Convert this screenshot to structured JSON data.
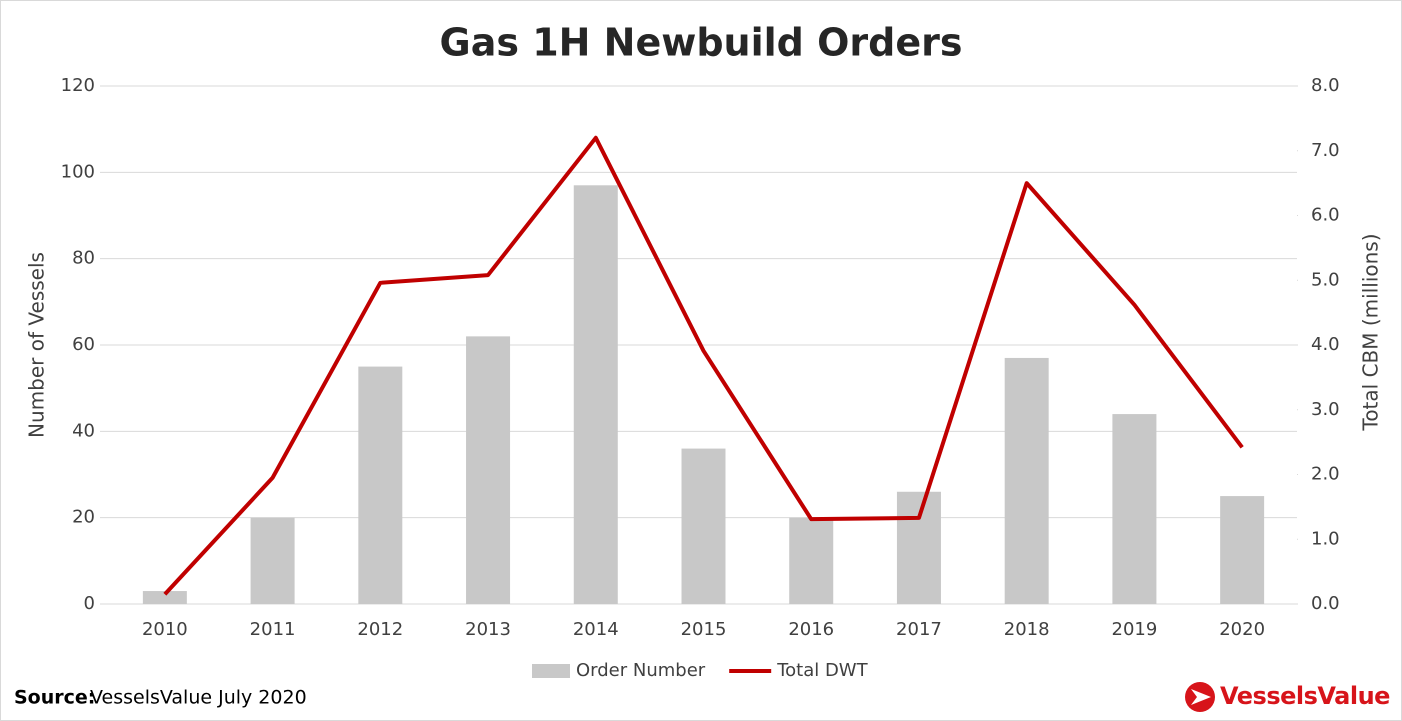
{
  "chart_data": {
    "type": "bar",
    "title": "Gas 1H Newbuild Orders",
    "y_label": "Number of Vessels",
    "y2_label": "Total CBM (millions)",
    "categories": [
      "2010",
      "2011",
      "2012",
      "2013",
      "2014",
      "2015",
      "2016",
      "2017",
      "2018",
      "2019",
      "2020"
    ],
    "series": [
      {
        "name": "Order Number",
        "type": "bar",
        "color": "#c8c8c8",
        "values": [
          3,
          20,
          55,
          62,
          97,
          36,
          20,
          26,
          57,
          44,
          25
        ]
      },
      {
        "name": "Total DWT",
        "type": "line",
        "axis": "y2",
        "color": "#c00000",
        "values": [
          0.15,
          1.95,
          4.96,
          5.08,
          7.2,
          3.91,
          1.31,
          1.33,
          6.5,
          4.62,
          2.42
        ]
      }
    ],
    "ylim": [
      0,
      120
    ],
    "yticks": [
      0,
      20,
      40,
      60,
      80,
      100,
      120
    ],
    "y2lim": [
      0,
      8
    ],
    "y2ticks": [
      {
        "value": 0,
        "label": "0.0"
      },
      {
        "value": 1,
        "label": "1.0"
      },
      {
        "value": 2,
        "label": "2.0"
      },
      {
        "value": 3,
        "label": "3.0"
      },
      {
        "value": 4,
        "label": "4.0"
      },
      {
        "value": 5,
        "label": "5.0"
      },
      {
        "value": 6,
        "label": "6.0"
      },
      {
        "value": 7,
        "label": "7.0"
      },
      {
        "value": 8,
        "label": "8.0"
      }
    ],
    "grid": true,
    "legend": "bottom",
    "source_label": "Source:",
    "source_text": "VesselsValue July 2020",
    "logo_text": "VesselsValue"
  }
}
